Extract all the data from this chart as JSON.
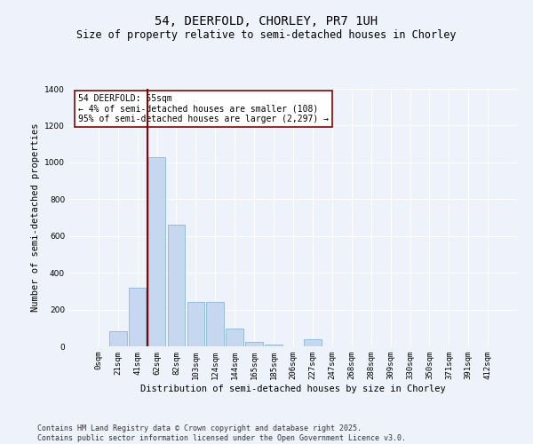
{
  "title": "54, DEERFOLD, CHORLEY, PR7 1UH",
  "subtitle": "Size of property relative to semi-detached houses in Chorley",
  "xlabel": "Distribution of semi-detached houses by size in Chorley",
  "ylabel": "Number of semi-detached properties",
  "bar_color": "#c5d8f0",
  "bar_edge_color": "#7aaed6",
  "background_color": "#eef3fb",
  "grid_color": "#ffffff",
  "categories": [
    "0sqm",
    "21sqm",
    "41sqm",
    "62sqm",
    "82sqm",
    "103sqm",
    "124sqm",
    "144sqm",
    "165sqm",
    "185sqm",
    "206sqm",
    "227sqm",
    "247sqm",
    "268sqm",
    "288sqm",
    "309sqm",
    "330sqm",
    "350sqm",
    "371sqm",
    "391sqm",
    "412sqm"
  ],
  "values": [
    0,
    80,
    320,
    1030,
    660,
    240,
    240,
    95,
    25,
    10,
    0,
    40,
    0,
    0,
    0,
    0,
    0,
    0,
    0,
    0,
    0
  ],
  "ylim": [
    0,
    1400
  ],
  "yticks": [
    0,
    200,
    400,
    600,
    800,
    1000,
    1200,
    1400
  ],
  "property_line_x": 2.5,
  "annotation_title": "54 DEERFOLD: 55sqm",
  "annotation_line1": "← 4% of semi-detached houses are smaller (108)",
  "annotation_line2": "95% of semi-detached houses are larger (2,297) →",
  "footer_line1": "Contains HM Land Registry data © Crown copyright and database right 2025.",
  "footer_line2": "Contains public sector information licensed under the Open Government Licence v3.0.",
  "title_fontsize": 10,
  "subtitle_fontsize": 8.5,
  "axis_label_fontsize": 7.5,
  "tick_fontsize": 6.5,
  "annotation_fontsize": 7,
  "footer_fontsize": 6
}
